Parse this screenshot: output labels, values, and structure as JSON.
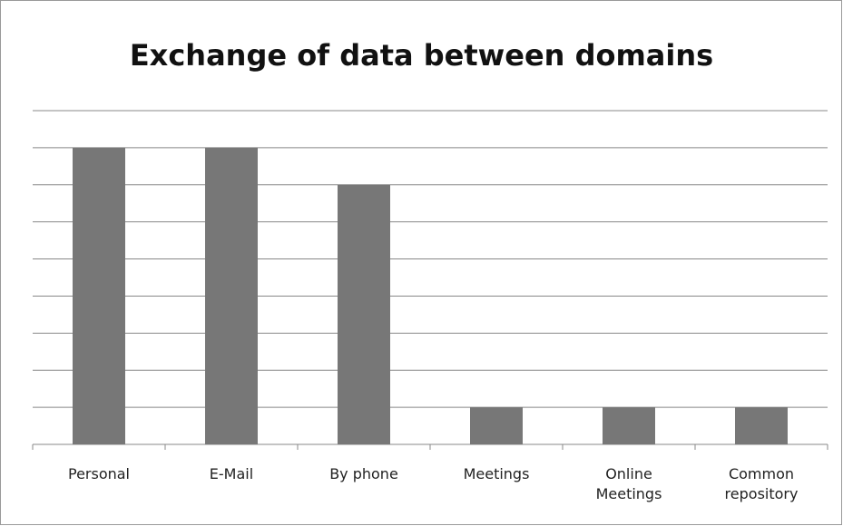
{
  "chart_data": {
    "type": "bar",
    "title": "Exchange of data between domains",
    "categories": [
      "Personal",
      "E-Mail",
      "By phone",
      "Meetings",
      "Online Meetings",
      "Common repository"
    ],
    "values": [
      8,
      8,
      7,
      1,
      1,
      1
    ],
    "color": "#777777",
    "ylim": [
      0,
      9
    ],
    "yticks": [
      0,
      1,
      2,
      3,
      4,
      5,
      6,
      7,
      8,
      9
    ],
    "grid": true
  }
}
